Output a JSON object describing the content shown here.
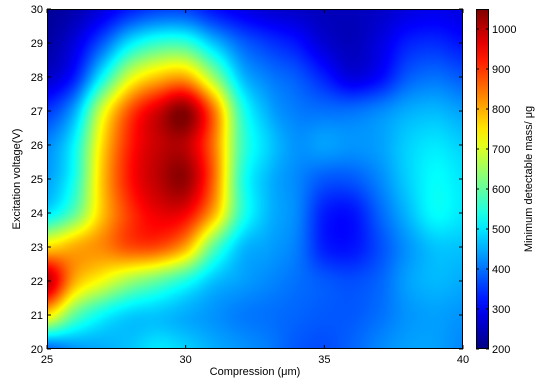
{
  "chart_data": {
    "type": "heatmap",
    "title": "",
    "xlabel": "Compression (μm)",
    "ylabel": "Excitation voltage(V)",
    "colorbar_label": "Minimum detectable mass/ μg",
    "xlim": [
      25,
      40
    ],
    "ylim": [
      20,
      30
    ],
    "clim": [
      200,
      1050
    ],
    "x_ticks": [
      25,
      30,
      35,
      40
    ],
    "y_ticks": [
      20,
      21,
      22,
      23,
      24,
      25,
      26,
      27,
      28,
      29,
      30
    ],
    "colorbar_ticks": [
      200,
      300,
      400,
      500,
      600,
      700,
      800,
      900,
      1000
    ],
    "grid": false,
    "colormap": "jet",
    "x": [
      25,
      26,
      27,
      28,
      29,
      30,
      31,
      32,
      33,
      34,
      35,
      36,
      37,
      38,
      39,
      40
    ],
    "y": [
      20,
      21,
      22,
      23,
      24,
      25,
      26,
      27,
      28,
      29,
      30
    ],
    "z": [
      [
        390,
        430,
        450,
        470,
        500,
        480,
        450,
        430,
        410,
        380,
        370,
        390,
        420,
        440,
        440,
        420
      ],
      [
        750,
        600,
        520,
        480,
        470,
        450,
        430,
        410,
        400,
        390,
        380,
        380,
        400,
        430,
        440,
        430
      ],
      [
        1000,
        800,
        720,
        650,
        600,
        540,
        470,
        440,
        420,
        400,
        380,
        370,
        390,
        440,
        460,
        450
      ],
      [
        760,
        800,
        830,
        880,
        880,
        800,
        600,
        470,
        440,
        410,
        330,
        320,
        370,
        430,
        470,
        470
      ],
      [
        500,
        600,
        780,
        900,
        960,
        950,
        800,
        560,
        460,
        420,
        330,
        320,
        390,
        460,
        520,
        500
      ],
      [
        440,
        540,
        780,
        930,
        1000,
        1030,
        860,
        560,
        460,
        420,
        380,
        380,
        420,
        480,
        520,
        500
      ],
      [
        420,
        520,
        760,
        920,
        990,
        1000,
        850,
        580,
        480,
        430,
        440,
        430,
        440,
        480,
        500,
        480
      ],
      [
        350,
        450,
        700,
        880,
        980,
        1040,
        850,
        560,
        450,
        410,
        400,
        400,
        420,
        450,
        460,
        440
      ],
      [
        260,
        330,
        520,
        700,
        780,
        800,
        650,
        470,
        410,
        380,
        330,
        280,
        310,
        380,
        400,
        380
      ],
      [
        230,
        280,
        380,
        500,
        560,
        560,
        470,
        390,
        350,
        320,
        270,
        250,
        280,
        330,
        340,
        320
      ],
      [
        220,
        240,
        280,
        330,
        360,
        360,
        320,
        290,
        270,
        260,
        250,
        250,
        260,
        280,
        290,
        280
      ]
    ]
  }
}
